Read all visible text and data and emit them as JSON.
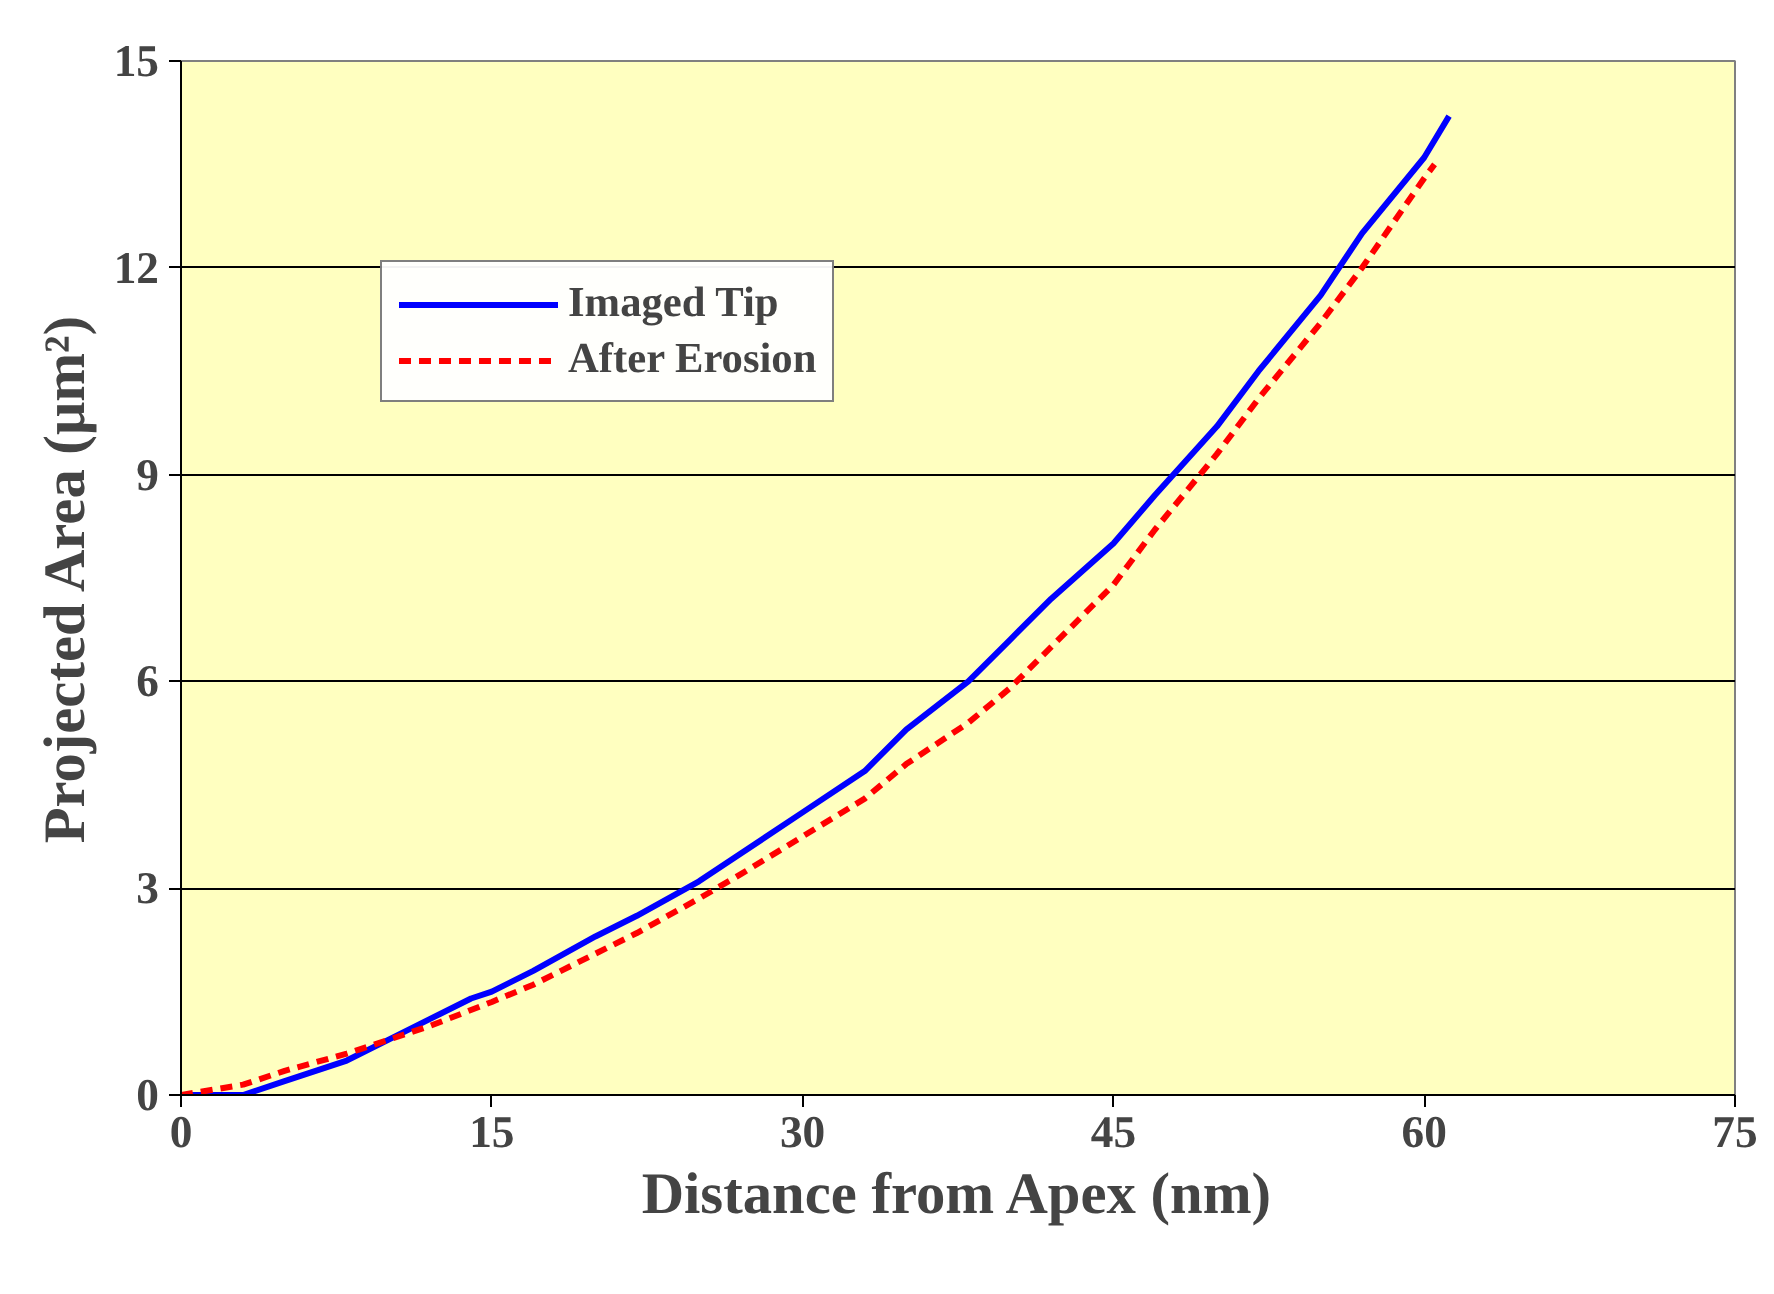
{
  "chart_data": {
    "type": "line",
    "xlabel": "Distance from Apex (nm)",
    "ylabel": "Projected Area (μm²)",
    "xlim": [
      0,
      75
    ],
    "xticks": [
      0,
      15,
      30,
      45,
      60,
      75
    ],
    "ylim": [
      0,
      15
    ],
    "yticks": [
      0,
      3,
      6,
      9,
      12,
      15
    ],
    "grid": "y",
    "legend": "top left",
    "series": [
      {
        "name": "Imaged Tip",
        "color": "#0000ff",
        "line_style": "solid",
        "x": [
          0,
          3,
          5,
          8,
          10,
          12,
          14,
          15,
          17,
          20,
          22,
          25,
          27,
          30,
          33,
          35,
          38,
          40,
          42,
          45,
          47,
          50,
          52,
          55,
          57,
          60,
          61.2
        ],
        "values": [
          0,
          0,
          0.2,
          0.5,
          0.8,
          1.1,
          1.4,
          1.5,
          1.8,
          2.3,
          2.6,
          3.1,
          3.5,
          4.1,
          4.7,
          5.3,
          6.0,
          6.6,
          7.2,
          8.0,
          8.7,
          9.7,
          10.5,
          11.6,
          12.5,
          13.6,
          14.2
        ]
      },
      {
        "name": "After Erosion",
        "color": "#ff0000",
        "line_style": "dashed",
        "x": [
          0,
          3,
          5,
          8,
          10,
          12,
          15,
          17,
          20,
          22,
          25,
          27,
          30,
          33,
          35,
          38,
          40,
          42,
          43,
          45,
          47,
          50,
          52,
          55,
          57,
          60,
          60.5
        ],
        "values": [
          0,
          0.15,
          0.35,
          0.6,
          0.8,
          1.0,
          1.35,
          1.6,
          2.05,
          2.35,
          2.85,
          3.2,
          3.75,
          4.3,
          4.8,
          5.4,
          5.9,
          6.5,
          6.8,
          7.4,
          8.2,
          9.3,
          10.1,
          11.2,
          12.0,
          13.3,
          13.5
        ]
      }
    ]
  }
}
